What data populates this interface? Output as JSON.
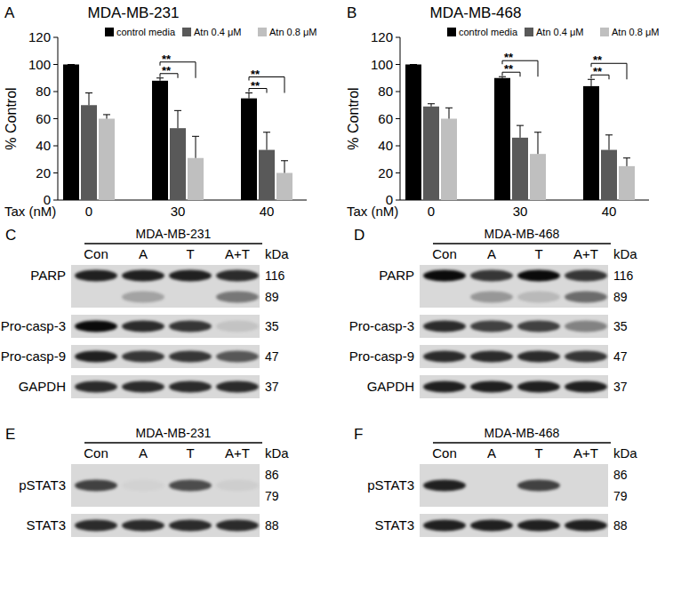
{
  "chart_data": [
    {
      "type": "bar",
      "panel": "A",
      "title": "MDA-MB-231",
      "x_label": "Tax (nM)",
      "y_label": "% Control",
      "categories": [
        "0",
        "30",
        "40"
      ],
      "series": [
        {
          "name": "control media",
          "color": "#000000",
          "values": [
            100,
            88,
            75
          ],
          "errors": [
            0,
            2,
            4
          ]
        },
        {
          "name": "Atn 0.4 μM",
          "color": "#595959",
          "values": [
            70,
            53,
            37
          ],
          "errors": [
            9,
            13,
            13
          ]
        },
        {
          "name": "Atn 0.8 μM",
          "color": "#bfbfbf",
          "values": [
            60,
            31,
            20
          ],
          "errors": [
            3,
            16,
            9
          ]
        }
      ],
      "ylim": [
        0,
        120
      ],
      "yticks": [
        0,
        20,
        40,
        60,
        80,
        100,
        120
      ],
      "legend": "top",
      "significance": [
        {
          "category": 1,
          "pair": [
            0,
            1
          ],
          "label": "**"
        },
        {
          "category": 1,
          "pair": [
            0,
            2
          ],
          "label": "**"
        },
        {
          "category": 2,
          "pair": [
            0,
            1
          ],
          "label": "**"
        },
        {
          "category": 2,
          "pair": [
            0,
            2
          ],
          "label": "**"
        }
      ]
    },
    {
      "type": "bar",
      "panel": "B",
      "title": "MDA-MB-468",
      "x_label": "Tax (nM)",
      "y_label": "% Control",
      "categories": [
        "0",
        "30",
        "40"
      ],
      "series": [
        {
          "name": "control media",
          "color": "#000000",
          "values": [
            100,
            90,
            84
          ],
          "errors": [
            0,
            1,
            5
          ]
        },
        {
          "name": "Atn 0.4 μM",
          "color": "#595959",
          "values": [
            69,
            46,
            37
          ],
          "errors": [
            2,
            9,
            11
          ]
        },
        {
          "name": "Atn 0.8 μM",
          "color": "#bfbfbf",
          "values": [
            60,
            34,
            25
          ],
          "errors": [
            8,
            16,
            6
          ]
        }
      ],
      "ylim": [
        0,
        120
      ],
      "yticks": [
        0,
        20,
        40,
        60,
        80,
        100,
        120
      ],
      "legend": "top",
      "significance": [
        {
          "category": 1,
          "pair": [
            0,
            1
          ],
          "label": "**"
        },
        {
          "category": 1,
          "pair": [
            0,
            2
          ],
          "label": "**"
        },
        {
          "category": 2,
          "pair": [
            0,
            1
          ],
          "label": "**"
        },
        {
          "category": 2,
          "pair": [
            0,
            2
          ],
          "label": "**"
        }
      ]
    }
  ],
  "blots": [
    {
      "panel": "C",
      "title": "MDA-MB-231",
      "lanes": [
        "Con",
        "A",
        "T",
        "A+T"
      ],
      "unit": "kDa",
      "rows": [
        {
          "name": "PARP",
          "kda": [
            116,
            89
          ],
          "tiers": [
            [
              0.85,
              0.85,
              0.85,
              0.8
            ],
            [
              0,
              0.25,
              0,
              0.45
            ]
          ]
        },
        {
          "name": "Pro-casp-3",
          "kda": [
            35
          ],
          "tiers": [
            [
              0.95,
              0.8,
              0.75,
              0.1
            ]
          ]
        },
        {
          "name": "Pro-casp-9",
          "kda": [
            47
          ],
          "tiers": [
            [
              0.85,
              0.75,
              0.75,
              0.6
            ]
          ]
        },
        {
          "name": "GAPDH",
          "kda": [
            37
          ],
          "tiers": [
            [
              0.8,
              0.8,
              0.8,
              0.8
            ]
          ]
        }
      ]
    },
    {
      "panel": "D",
      "title": "MDA-MB-468",
      "lanes": [
        "Con",
        "A",
        "T",
        "A+T"
      ],
      "unit": "kDa",
      "rows": [
        {
          "name": "PARP",
          "kda": [
            116,
            89
          ],
          "tiers": [
            [
              0.95,
              0.75,
              0.95,
              0.75
            ],
            [
              0,
              0.3,
              0.15,
              0.5
            ]
          ]
        },
        {
          "name": "Pro-casp-3",
          "kda": [
            35
          ],
          "tiers": [
            [
              0.8,
              0.7,
              0.7,
              0.4
            ]
          ]
        },
        {
          "name": "Pro-casp-9",
          "kda": [
            47
          ],
          "tiers": [
            [
              0.8,
              0.8,
              0.8,
              0.75
            ]
          ]
        },
        {
          "name": "GAPDH",
          "kda": [
            37
          ],
          "tiers": [
            [
              0.85,
              0.85,
              0.85,
              0.85
            ]
          ]
        }
      ]
    },
    {
      "panel": "E",
      "title": "MDA-MB-231",
      "lanes": [
        "Con",
        "A",
        "T",
        "A+T"
      ],
      "unit": "kDa",
      "rows": [
        {
          "name": "pSTAT3",
          "kda": [
            86,
            79
          ],
          "tiers": [
            [
              0.7,
              0.03,
              0.65,
              0.05
            ]
          ]
        },
        {
          "name": "STAT3",
          "kda": [
            88
          ],
          "tiers": [
            [
              0.8,
              0.8,
              0.8,
              0.8
            ]
          ]
        }
      ]
    },
    {
      "panel": "F",
      "title": "MDA-MB-468",
      "lanes": [
        "Con",
        "A",
        "T",
        "A+T"
      ],
      "unit": "kDa",
      "rows": [
        {
          "name": "pSTAT3",
          "kda": [
            86,
            79
          ],
          "tiers": [
            [
              0.85,
              0,
              0.7,
              0
            ]
          ]
        },
        {
          "name": "STAT3",
          "kda": [
            88
          ],
          "tiers": [
            [
              0.85,
              0.85,
              0.85,
              0.85
            ]
          ]
        }
      ]
    }
  ]
}
